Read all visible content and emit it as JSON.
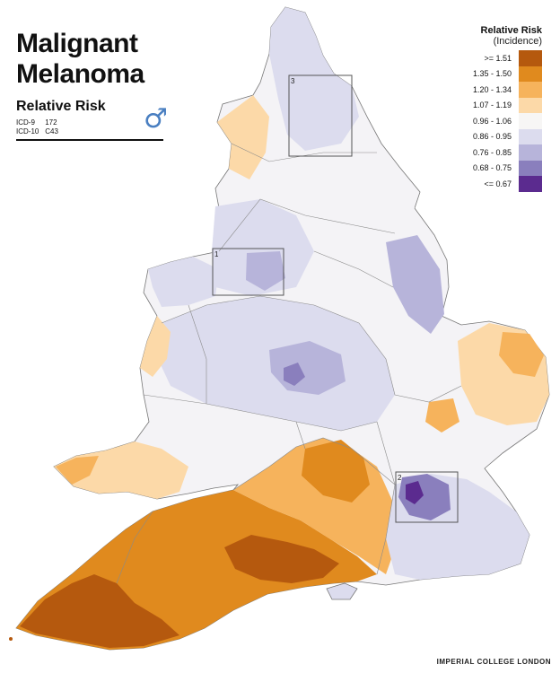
{
  "title_line1": "Malignant",
  "title_line2": "Melanoma",
  "subtitle": "Relative Risk",
  "codes": [
    {
      "label": "ICD-9",
      "value": "172"
    },
    {
      "label": "ICD-10",
      "value": "C43"
    }
  ],
  "sex_symbol": "♂",
  "legend": {
    "title": "Relative Risk",
    "subtitle": "(Incidence)",
    "items": [
      {
        "label": ">= 1.51",
        "color": "#b5590e"
      },
      {
        "label": "1.35 - 1.50",
        "color": "#e08a1e"
      },
      {
        "label": "1.20 - 1.34",
        "color": "#f6b35c"
      },
      {
        "label": "1.07 - 1.19",
        "color": "#fcd9a8"
      },
      {
        "label": "0.96 - 1.06",
        "color": "#f7f6f5"
      },
      {
        "label": "0.86 - 0.95",
        "color": "#dcdcee"
      },
      {
        "label": "0.76 - 0.85",
        "color": "#b7b4da"
      },
      {
        "label": "0.68 - 0.75",
        "color": "#8a7fbd"
      },
      {
        "label": "<= 0.67",
        "color": "#5b2b8f"
      }
    ]
  },
  "inset_labels": [
    "1",
    "2",
    "3"
  ],
  "credit": "IMPERIAL COLLEGE LONDON"
}
